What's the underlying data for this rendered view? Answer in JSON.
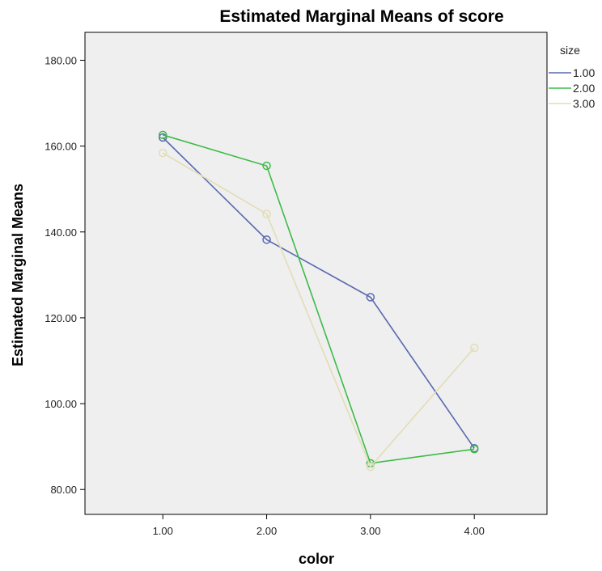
{
  "chart_data": {
    "type": "line",
    "title": "Estimated Marginal Means of score",
    "xlabel": "color",
    "ylabel": "Estimated Marginal Means",
    "categories": [
      "1.00",
      "2.00",
      "3.00",
      "4.00"
    ],
    "x": [
      1,
      2,
      3,
      4
    ],
    "xlim": [
      0.25,
      4.7
    ],
    "ylim": [
      74.2,
      186.5
    ],
    "yticks": [
      "80.00",
      "100.00",
      "120.00",
      "140.00",
      "160.00",
      "180.00"
    ],
    "ytick_values": [
      80,
      100,
      120,
      140,
      160,
      180
    ],
    "grid": false,
    "legend": {
      "title": "size",
      "placement": "right"
    },
    "plot_background": "#efefef",
    "series": [
      {
        "name": "1.00",
        "color": "#5968b0",
        "values": [
          162.0,
          138.2,
          124.8,
          89.6
        ]
      },
      {
        "name": "2.00",
        "color": "#3dbb48",
        "values": [
          162.6,
          155.4,
          86.1,
          89.4
        ]
      },
      {
        "name": "3.00",
        "color": "#e2ddb5",
        "values": [
          158.4,
          144.2,
          85.3,
          113.0
        ]
      }
    ]
  }
}
